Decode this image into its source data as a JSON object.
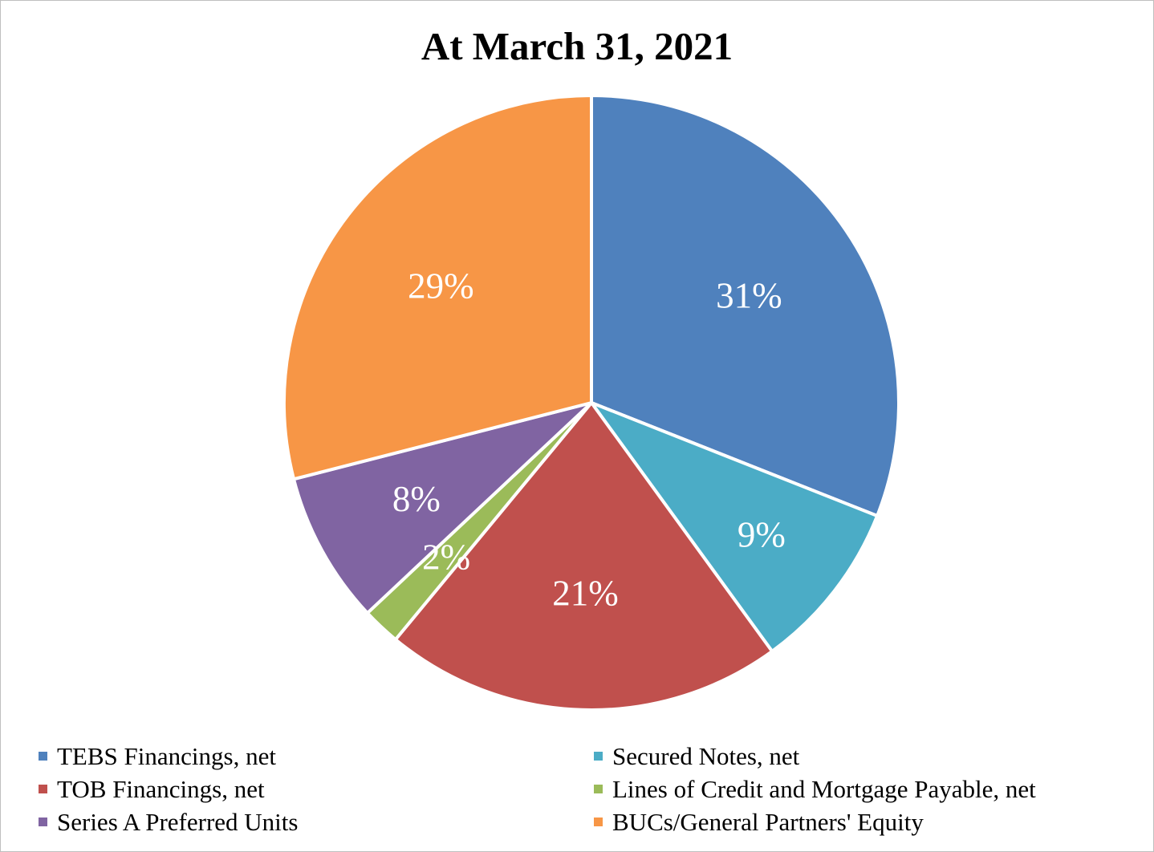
{
  "chart_data": {
    "type": "pie",
    "title": "At March 31, 2021",
    "slices": [
      {
        "name": "TEBS Financings, net",
        "value": 31,
        "label": "31%",
        "color": "#4f81bd"
      },
      {
        "name": "Secured Notes, net",
        "value": 9,
        "label": "9%",
        "color": "#4bacc6"
      },
      {
        "name": "TOB Financings, net",
        "value": 21,
        "label": "21%",
        "color": "#c0504d"
      },
      {
        "name": "Lines of Credit and Mortgage Payable, net",
        "value": 2,
        "label": "2%",
        "color": "#9bbb59"
      },
      {
        "name": "Series A Preferred Units",
        "value": 8,
        "label": "8%",
        "color": "#8064a2"
      },
      {
        "name": "BUCs/General Partners' Equity",
        "value": 29,
        "label": "29%",
        "color": "#f79646"
      }
    ],
    "start_angle_deg": 0,
    "direction": "clockwise",
    "legend_position": "bottom",
    "legend_order": [
      0,
      1,
      2,
      3,
      4,
      5
    ]
  }
}
